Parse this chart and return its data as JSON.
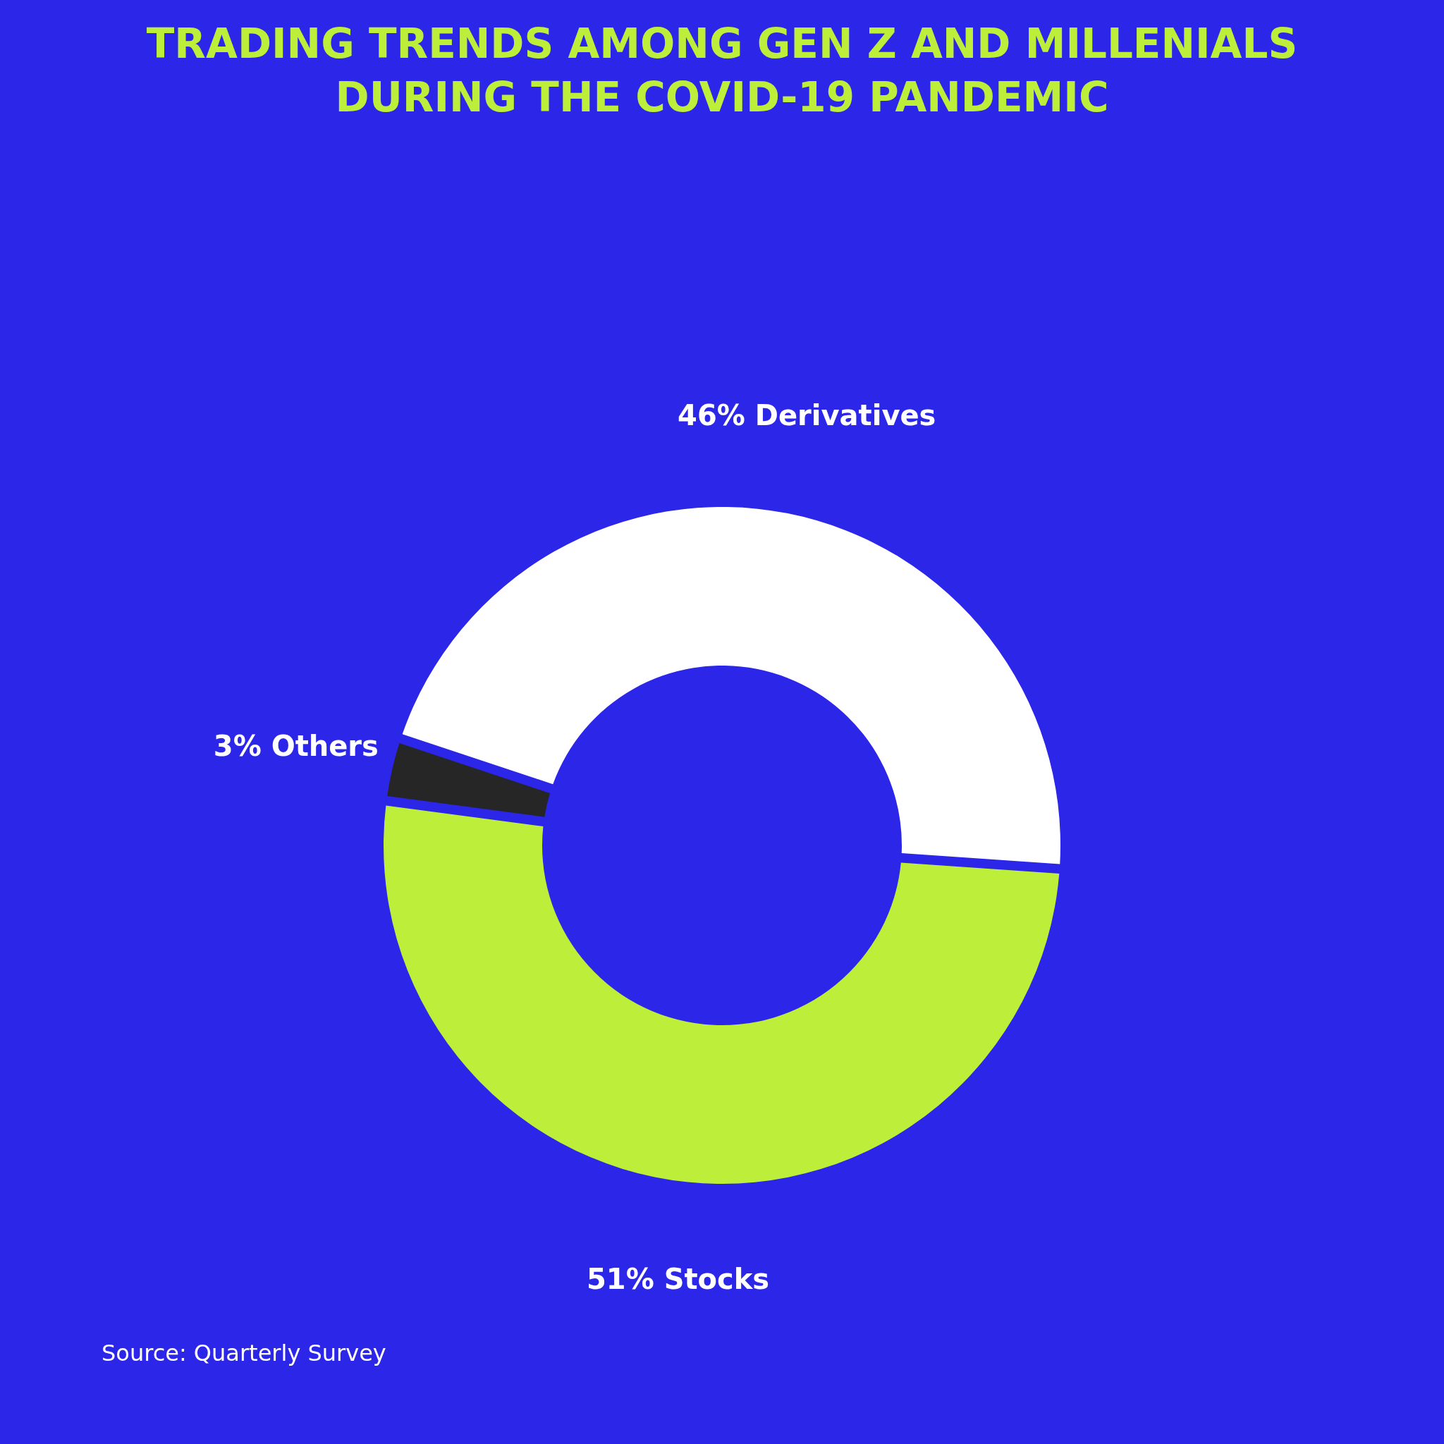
{
  "chart_data": {
    "type": "donut",
    "title": [
      "TRADING TRENDS AMONG GEN Z AND MILLENIALS",
      "DURING THE COVID-19 PANDEMIC"
    ],
    "categories": [
      "Derivatives",
      "Stocks",
      "Others"
    ],
    "values": [
      46,
      51,
      3
    ],
    "colors": [
      "#ffffff",
      "#bdee3a",
      "#262626"
    ],
    "value_labels": [
      "46%",
      "51%",
      "3%"
    ],
    "annotations": [
      "Source: Quarterly Survey"
    ]
  }
}
